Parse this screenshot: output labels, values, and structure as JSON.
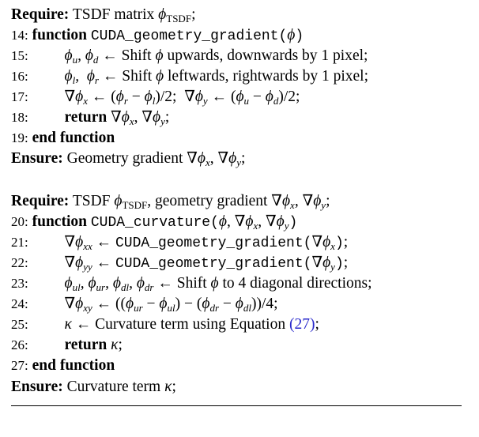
{
  "block1": {
    "require_kw": "Require:",
    "require_text": "TSDF matrix ϕTSDF;",
    "lines": [
      {
        "num": "14:",
        "text": "function CUDA_geometry_gradient(ϕ)"
      },
      {
        "num": "15:",
        "text": "ϕu, ϕd ← Shift ϕ upwards, downwards by 1 pixel;"
      },
      {
        "num": "16:",
        "text": "ϕl, ϕr ← Shift ϕ leftwards, rightwards by 1 pixel;"
      },
      {
        "num": "17:",
        "text": "∇ϕx ← (ϕr − ϕl)/2;  ∇ϕy ← (ϕu − ϕd)/2;"
      },
      {
        "num": "18:",
        "text": "return ∇ϕx, ∇ϕy;"
      },
      {
        "num": "19:",
        "text": "end function"
      }
    ],
    "ensure_kw": "Ensure:",
    "ensure_text": "Geometry gradient ∇ϕx, ∇ϕy;"
  },
  "block2": {
    "require_kw": "Require:",
    "require_text": "TSDF ϕTSDF, geometry gradient ∇ϕx, ∇ϕy;",
    "lines": [
      {
        "num": "20:",
        "text": "function CUDA_curvature(ϕ, ∇ϕx, ∇ϕy)"
      },
      {
        "num": "21:",
        "text": "∇ϕxx ← CUDA_geometry_gradient(∇ϕx);"
      },
      {
        "num": "22:",
        "text": "∇ϕyy ← CUDA_geometry_gradient(∇ϕy);"
      },
      {
        "num": "23:",
        "text": "ϕul, ϕur, ϕdl, ϕdr ← Shift ϕ to 4 diagonal directions;"
      },
      {
        "num": "24:",
        "text": "∇ϕxy ← ((ϕur − ϕul) − (ϕdr − ϕdl))/4;"
      },
      {
        "num": "25:",
        "text": "κ ← Curvature term using Equation (27);"
      },
      {
        "num": "26:",
        "text": "return κ;"
      },
      {
        "num": "27:",
        "text": "end function"
      }
    ],
    "ensure_kw": "Ensure:",
    "ensure_text": "Curvature term κ;"
  }
}
